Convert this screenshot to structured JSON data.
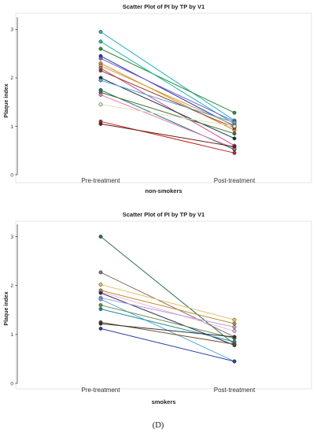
{
  "caption": "(D)",
  "chart_data": [
    {
      "type": "line",
      "title": "Scatter Plot of PI by TP by V1",
      "ylabel": "Plaque index",
      "xlabel": "non-smokers",
      "categories": [
        "Pre-treatment",
        "Post-treatment"
      ],
      "ylim": [
        0,
        3.25
      ],
      "yticks": [
        "0",
        "1",
        "2",
        "3"
      ],
      "grid": false,
      "series": [
        {
          "values": [
            2.95,
            1.12
          ],
          "color": "#2ab0c5"
        },
        {
          "values": [
            2.6,
            1.28
          ],
          "color": "#2e8b3a"
        },
        {
          "values": [
            2.75,
            1.05
          ],
          "color": "#1fb5a5"
        },
        {
          "values": [
            2.45,
            1.0
          ],
          "color": "#2035a0"
        },
        {
          "values": [
            2.4,
            1.1
          ],
          "color": "#7a5fd0"
        },
        {
          "values": [
            2.3,
            0.92
          ],
          "color": "#e08a1e"
        },
        {
          "values": [
            2.25,
            1.02
          ],
          "color": "#c8a040"
        },
        {
          "values": [
            2.2,
            0.6
          ],
          "color": "#d04a8a"
        },
        {
          "values": [
            2.15,
            0.97
          ],
          "color": "#8a3a2a"
        },
        {
          "values": [
            2.0,
            0.75
          ],
          "color": "#0e3a45"
        },
        {
          "values": [
            1.95,
            1.08
          ],
          "color": "#5aa0d8"
        },
        {
          "values": [
            1.75,
            0.52
          ],
          "color": "#1a7a7a"
        },
        {
          "values": [
            1.7,
            0.85
          ],
          "color": "#4a6a30"
        },
        {
          "values": [
            1.65,
            0.55
          ],
          "color": "#e87ab0"
        },
        {
          "values": [
            1.45,
            1.0
          ],
          "color": "#e8e0b8"
        },
        {
          "values": [
            1.1,
            0.45
          ],
          "color": "#c02020"
        },
        {
          "values": [
            1.05,
            0.58
          ],
          "color": "#6a1a10"
        }
      ]
    },
    {
      "type": "line",
      "title": "Scatter Plot of PI by TP by V1",
      "ylabel": "Plaque index",
      "xlabel": "smokers",
      "categories": [
        "Pre-treatment",
        "Post-treatment"
      ],
      "ylim": [
        0,
        3.25
      ],
      "yticks": [
        "0",
        "1",
        "2",
        "3"
      ],
      "grid": false,
      "series": [
        {
          "values": [
            3.0,
            0.8
          ],
          "color": "#2e6a5a"
        },
        {
          "values": [
            2.27,
            0.95
          ],
          "color": "#8a7060"
        },
        {
          "values": [
            2.02,
            1.3
          ],
          "color": "#e0c060"
        },
        {
          "values": [
            1.9,
            1.22
          ],
          "color": "#c08a30"
        },
        {
          "values": [
            1.87,
            1.07
          ],
          "color": "#f0b8d0"
        },
        {
          "values": [
            1.85,
            0.78
          ],
          "color": "#2a2a60"
        },
        {
          "values": [
            1.75,
            1.15
          ],
          "color": "#b0a0e0"
        },
        {
          "values": [
            1.72,
            0.45
          ],
          "color": "#5aa8e0"
        },
        {
          "values": [
            1.6,
            0.92
          ],
          "color": "#6a8a40"
        },
        {
          "values": [
            1.52,
            0.85
          ],
          "color": "#1a8aa0"
        },
        {
          "values": [
            1.25,
            0.8
          ],
          "color": "#6a4a20"
        },
        {
          "values": [
            1.22,
            0.95
          ],
          "color": "#333333"
        },
        {
          "values": [
            1.12,
            0.45
          ],
          "color": "#2a40a0"
        }
      ]
    }
  ]
}
